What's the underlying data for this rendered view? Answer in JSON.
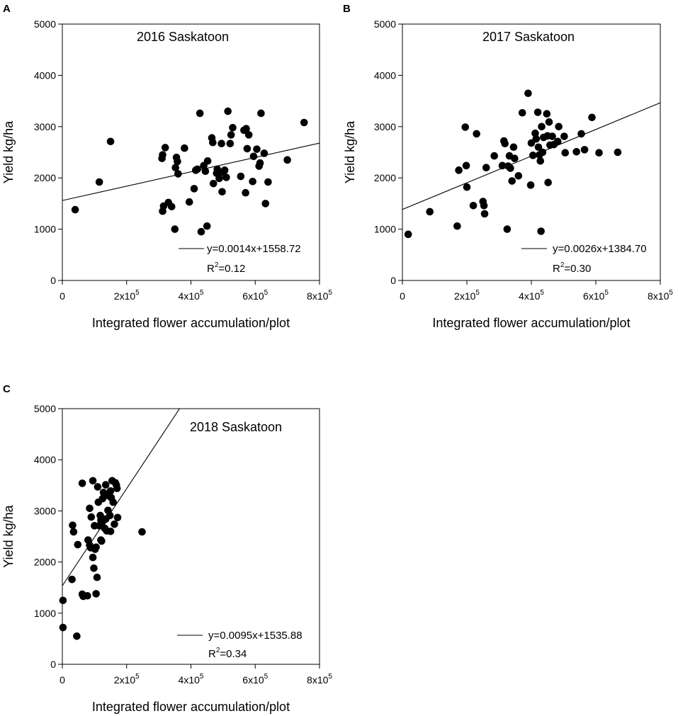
{
  "figure": {
    "background": "#ffffff",
    "marker_color": "#000000"
  },
  "chart_data": [
    {
      "panel": "A",
      "type": "scatter",
      "title": "2016 Saskatoon",
      "xlabel": "Integrated flower accumulation/plot",
      "ylabel": "Yield kg/ha",
      "xlim": [
        0,
        800000
      ],
      "ylim": [
        0,
        5000
      ],
      "xticks": [
        0,
        200000,
        400000,
        600000,
        800000
      ],
      "yticks": [
        0,
        1000,
        2000,
        3000,
        4000,
        5000
      ],
      "x_tick_labels": [
        {
          "base": "0",
          "exp": ""
        },
        {
          "base": "2x10",
          "exp": "5"
        },
        {
          "base": "4x10",
          "exp": "5"
        },
        {
          "base": "6x10",
          "exp": "5"
        },
        {
          "base": "8x10",
          "exp": "5"
        }
      ],
      "y_tick_labels": [
        "0",
        "1000",
        "2000",
        "3000",
        "4000",
        "5000"
      ],
      "regression": {
        "equation": "y=0.0014x+1558.72",
        "r2_prefix": "R",
        "r2_sup": "2",
        "r2_value": "=0.12",
        "slope": 0.0014,
        "intercept": 1558.72
      },
      "points": [
        [
          40000,
          1380
        ],
        [
          115000,
          1920
        ],
        [
          150000,
          2710
        ],
        [
          310000,
          2380
        ],
        [
          312000,
          2450
        ],
        [
          315000,
          1450
        ],
        [
          312000,
          1350
        ],
        [
          320000,
          2590
        ],
        [
          330000,
          1520
        ],
        [
          340000,
          1440
        ],
        [
          350000,
          1000
        ],
        [
          352000,
          2200
        ],
        [
          355000,
          2400
        ],
        [
          358000,
          2320
        ],
        [
          360000,
          2080
        ],
        [
          380000,
          2580
        ],
        [
          395000,
          1530
        ],
        [
          410000,
          1790
        ],
        [
          415000,
          2150
        ],
        [
          420000,
          2170
        ],
        [
          428000,
          3260
        ],
        [
          432000,
          950
        ],
        [
          440000,
          2240
        ],
        [
          445000,
          2130
        ],
        [
          450000,
          1060
        ],
        [
          452000,
          2330
        ],
        [
          465000,
          2780
        ],
        [
          468000,
          2690
        ],
        [
          470000,
          1890
        ],
        [
          480000,
          2090
        ],
        [
          482000,
          2170
        ],
        [
          488000,
          1990
        ],
        [
          495000,
          2670
        ],
        [
          497000,
          1730
        ],
        [
          500000,
          2110
        ],
        [
          505000,
          2150
        ],
        [
          510000,
          2010
        ],
        [
          515000,
          3300
        ],
        [
          522000,
          2670
        ],
        [
          525000,
          2840
        ],
        [
          530000,
          2980
        ],
        [
          555000,
          2030
        ],
        [
          565000,
          2930
        ],
        [
          570000,
          1710
        ],
        [
          572000,
          2960
        ],
        [
          575000,
          2570
        ],
        [
          580000,
          2840
        ],
        [
          592000,
          1930
        ],
        [
          595000,
          2420
        ],
        [
          605000,
          2560
        ],
        [
          612000,
          2230
        ],
        [
          615000,
          2290
        ],
        [
          618000,
          3260
        ],
        [
          628000,
          2480
        ],
        [
          632000,
          1500
        ],
        [
          640000,
          1920
        ],
        [
          700000,
          2350
        ],
        [
          752000,
          3080
        ]
      ]
    },
    {
      "panel": "B",
      "type": "scatter",
      "title": "2017 Saskatoon",
      "xlabel": "Integrated flower accumulation/plot",
      "ylabel": "Yield kg/ha",
      "xlim": [
        0,
        800000
      ],
      "ylim": [
        0,
        5000
      ],
      "xticks": [
        0,
        200000,
        400000,
        600000,
        800000
      ],
      "yticks": [
        0,
        1000,
        2000,
        3000,
        4000,
        5000
      ],
      "x_tick_labels": [
        {
          "base": "0",
          "exp": ""
        },
        {
          "base": "2x10",
          "exp": "5"
        },
        {
          "base": "4x10",
          "exp": "5"
        },
        {
          "base": "6x10",
          "exp": "5"
        },
        {
          "base": "8x10",
          "exp": "5"
        }
      ],
      "y_tick_labels": [
        "0",
        "1000",
        "2000",
        "3000",
        "4000",
        "5000"
      ],
      "regression": {
        "equation": "y=0.0026x+1384.70",
        "r2_prefix": "R",
        "r2_sup": "2",
        "r2_value": "=0.30",
        "slope": 0.0026,
        "intercept": 1384.7
      },
      "points": [
        [
          18000,
          900
        ],
        [
          85000,
          1340
        ],
        [
          170000,
          1060
        ],
        [
          175000,
          2150
        ],
        [
          195000,
          2990
        ],
        [
          198000,
          2240
        ],
        [
          200000,
          1820
        ],
        [
          220000,
          1460
        ],
        [
          230000,
          2860
        ],
        [
          250000,
          1540
        ],
        [
          253000,
          1460
        ],
        [
          255000,
          1300
        ],
        [
          260000,
          2200
        ],
        [
          285000,
          2430
        ],
        [
          310000,
          2240
        ],
        [
          315000,
          2720
        ],
        [
          318000,
          2670
        ],
        [
          325000,
          1000
        ],
        [
          328000,
          2230
        ],
        [
          332000,
          2430
        ],
        [
          335000,
          2190
        ],
        [
          340000,
          1940
        ],
        [
          345000,
          2600
        ],
        [
          348000,
          2380
        ],
        [
          360000,
          2040
        ],
        [
          372000,
          3270
        ],
        [
          390000,
          3650
        ],
        [
          398000,
          1860
        ],
        [
          400000,
          2680
        ],
        [
          405000,
          2440
        ],
        [
          412000,
          2870
        ],
        [
          415000,
          2760
        ],
        [
          420000,
          3280
        ],
        [
          422000,
          2600
        ],
        [
          425000,
          2450
        ],
        [
          428000,
          2330
        ],
        [
          430000,
          960
        ],
        [
          432000,
          3000
        ],
        [
          435000,
          2500
        ],
        [
          438000,
          2790
        ],
        [
          448000,
          3250
        ],
        [
          450000,
          2820
        ],
        [
          452000,
          1910
        ],
        [
          455000,
          3090
        ],
        [
          458000,
          2640
        ],
        [
          465000,
          2810
        ],
        [
          470000,
          2650
        ],
        [
          482000,
          2710
        ],
        [
          485000,
          3000
        ],
        [
          502000,
          2810
        ],
        [
          505000,
          2490
        ],
        [
          540000,
          2510
        ],
        [
          555000,
          2860
        ],
        [
          565000,
          2550
        ],
        [
          588000,
          3180
        ],
        [
          610000,
          2490
        ],
        [
          668000,
          2500
        ]
      ]
    },
    {
      "panel": "C",
      "type": "scatter",
      "title": "2018 Saskatoon",
      "xlabel": "Integrated flower accumulation/plot",
      "ylabel": "Yield kg/ha",
      "xlim": [
        0,
        800000
      ],
      "ylim": [
        0,
        5000
      ],
      "xticks": [
        0,
        200000,
        400000,
        600000,
        800000
      ],
      "yticks": [
        0,
        1000,
        2000,
        3000,
        4000,
        5000
      ],
      "x_tick_labels": [
        {
          "base": "0",
          "exp": ""
        },
        {
          "base": "2x10",
          "exp": "5"
        },
        {
          "base": "4x10",
          "exp": "5"
        },
        {
          "base": "6x10",
          "exp": "5"
        },
        {
          "base": "8x10",
          "exp": "5"
        }
      ],
      "y_tick_labels": [
        "0",
        "1000",
        "2000",
        "3000",
        "4000",
        "5000"
      ],
      "regression": {
        "equation": "y=0.0095x+1535.88",
        "r2_prefix": "R",
        "r2_sup": "2",
        "r2_value": "=0.34",
        "slope": 0.0095,
        "intercept": 1535.88
      },
      "points": [
        [
          2000,
          1250
        ],
        [
          2000,
          720
        ],
        [
          30000,
          1660
        ],
        [
          32000,
          2720
        ],
        [
          35000,
          2590
        ],
        [
          45000,
          550
        ],
        [
          48000,
          2340
        ],
        [
          62000,
          3540
        ],
        [
          62000,
          1370
        ],
        [
          65000,
          1330
        ],
        [
          78000,
          1340
        ],
        [
          80000,
          2430
        ],
        [
          85000,
          2330
        ],
        [
          85000,
          3050
        ],
        [
          88000,
          2280
        ],
        [
          90000,
          2880
        ],
        [
          95000,
          3590
        ],
        [
          95000,
          2090
        ],
        [
          98000,
          1880
        ],
        [
          100000,
          2710
        ],
        [
          102000,
          2250
        ],
        [
          105000,
          2290
        ],
        [
          105000,
          1380
        ],
        [
          108000,
          1700
        ],
        [
          110000,
          3470
        ],
        [
          112000,
          3170
        ],
        [
          115000,
          2710
        ],
        [
          118000,
          2910
        ],
        [
          120000,
          2820
        ],
        [
          120000,
          2430
        ],
        [
          122000,
          2410
        ],
        [
          125000,
          3240
        ],
        [
          125000,
          2790
        ],
        [
          128000,
          3360
        ],
        [
          132000,
          2660
        ],
        [
          135000,
          3510
        ],
        [
          135000,
          2840
        ],
        [
          138000,
          2610
        ],
        [
          142000,
          3010
        ],
        [
          142000,
          3300
        ],
        [
          148000,
          2910
        ],
        [
          150000,
          3390
        ],
        [
          150000,
          2600
        ],
        [
          152000,
          3260
        ],
        [
          155000,
          3590
        ],
        [
          158000,
          3170
        ],
        [
          162000,
          2740
        ],
        [
          165000,
          3550
        ],
        [
          168000,
          3510
        ],
        [
          170000,
          3440
        ],
        [
          172000,
          2870
        ],
        [
          248000,
          2590
        ]
      ]
    }
  ]
}
